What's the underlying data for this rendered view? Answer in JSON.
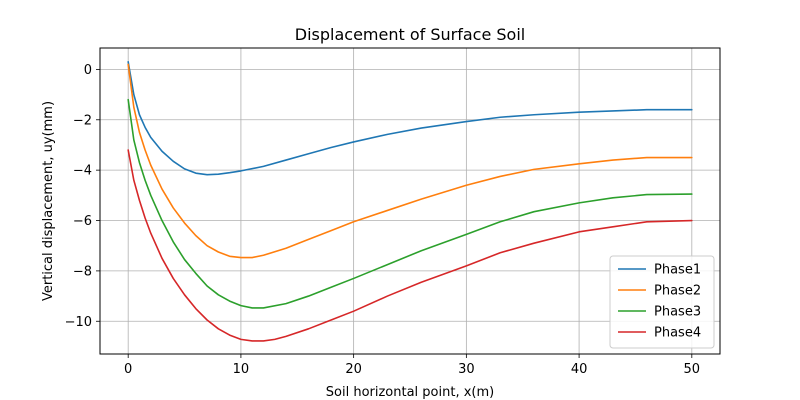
{
  "chart_data": {
    "type": "line",
    "title": "Displacement of Surface Soil",
    "xlabel": "Soil horizontal point, x(m)",
    "ylabel": "Vertical displacement, uy(mm)",
    "xlim": [
      -2.5,
      52.5
    ],
    "ylim": [
      -11.3,
      0.85
    ],
    "xticks": [
      0,
      10,
      20,
      30,
      40,
      50
    ],
    "yticks": [
      0,
      -2,
      -4,
      -6,
      -8,
      -10
    ],
    "xtick_labels": [
      "0",
      "10",
      "20",
      "30",
      "40",
      "50"
    ],
    "ytick_labels": [
      "0",
      "−2",
      "−4",
      "−6",
      "−8",
      "−10"
    ],
    "grid": true,
    "legend_position": "lower-right",
    "series": [
      {
        "name": "Phase1",
        "color": "#1f77b4",
        "x": [
          0,
          0.5,
          1,
          1.5,
          2,
          3,
          4,
          5,
          6,
          7,
          8,
          9,
          10,
          12,
          14,
          16,
          18,
          20,
          23,
          26,
          30,
          33,
          36,
          40,
          43,
          46,
          50
        ],
        "y": [
          0.3,
          -1.0,
          -1.8,
          -2.3,
          -2.7,
          -3.25,
          -3.65,
          -3.95,
          -4.12,
          -4.18,
          -4.16,
          -4.1,
          -4.03,
          -3.85,
          -3.6,
          -3.35,
          -3.1,
          -2.88,
          -2.58,
          -2.33,
          -2.07,
          -1.9,
          -1.8,
          -1.7,
          -1.65,
          -1.6,
          -1.6
        ]
      },
      {
        "name": "Phase2",
        "color": "#ff7f0e",
        "x": [
          0,
          0.5,
          1,
          1.5,
          2,
          3,
          4,
          5,
          6,
          7,
          8,
          9,
          10,
          11,
          12,
          14,
          16,
          18,
          20,
          23,
          26,
          30,
          33,
          36,
          40,
          43,
          46,
          50
        ],
        "y": [
          0.2,
          -1.5,
          -2.5,
          -3.2,
          -3.8,
          -4.75,
          -5.5,
          -6.1,
          -6.6,
          -7.0,
          -7.25,
          -7.42,
          -7.47,
          -7.47,
          -7.38,
          -7.1,
          -6.75,
          -6.4,
          -6.05,
          -5.6,
          -5.15,
          -4.6,
          -4.25,
          -3.97,
          -3.75,
          -3.6,
          -3.5,
          -3.5
        ]
      },
      {
        "name": "Phase3",
        "color": "#2ca02c",
        "x": [
          0,
          0.5,
          1,
          1.5,
          2,
          3,
          4,
          5,
          6,
          7,
          8,
          9,
          10,
          11,
          12,
          14,
          16,
          18,
          20,
          23,
          26,
          30,
          33,
          36,
          40,
          43,
          46,
          50
        ],
        "y": [
          -1.2,
          -2.8,
          -3.7,
          -4.4,
          -5.0,
          -6.0,
          -6.85,
          -7.55,
          -8.1,
          -8.6,
          -8.95,
          -9.2,
          -9.38,
          -9.47,
          -9.47,
          -9.3,
          -9.0,
          -8.65,
          -8.3,
          -7.75,
          -7.2,
          -6.55,
          -6.05,
          -5.65,
          -5.3,
          -5.1,
          -4.97,
          -4.95
        ]
      },
      {
        "name": "Phase4",
        "color": "#d62728",
        "x": [
          0,
          0.5,
          1,
          1.5,
          2,
          3,
          4,
          5,
          6,
          7,
          8,
          9,
          10,
          11,
          12,
          13,
          14,
          16,
          18,
          20,
          23,
          26,
          30,
          33,
          36,
          40,
          43,
          46,
          50
        ],
        "y": [
          -3.2,
          -4.4,
          -5.2,
          -5.9,
          -6.5,
          -7.5,
          -8.3,
          -8.95,
          -9.5,
          -9.95,
          -10.3,
          -10.55,
          -10.72,
          -10.78,
          -10.78,
          -10.72,
          -10.6,
          -10.3,
          -9.95,
          -9.6,
          -9.0,
          -8.45,
          -7.8,
          -7.28,
          -6.9,
          -6.45,
          -6.25,
          -6.05,
          -6.0
        ]
      }
    ]
  }
}
